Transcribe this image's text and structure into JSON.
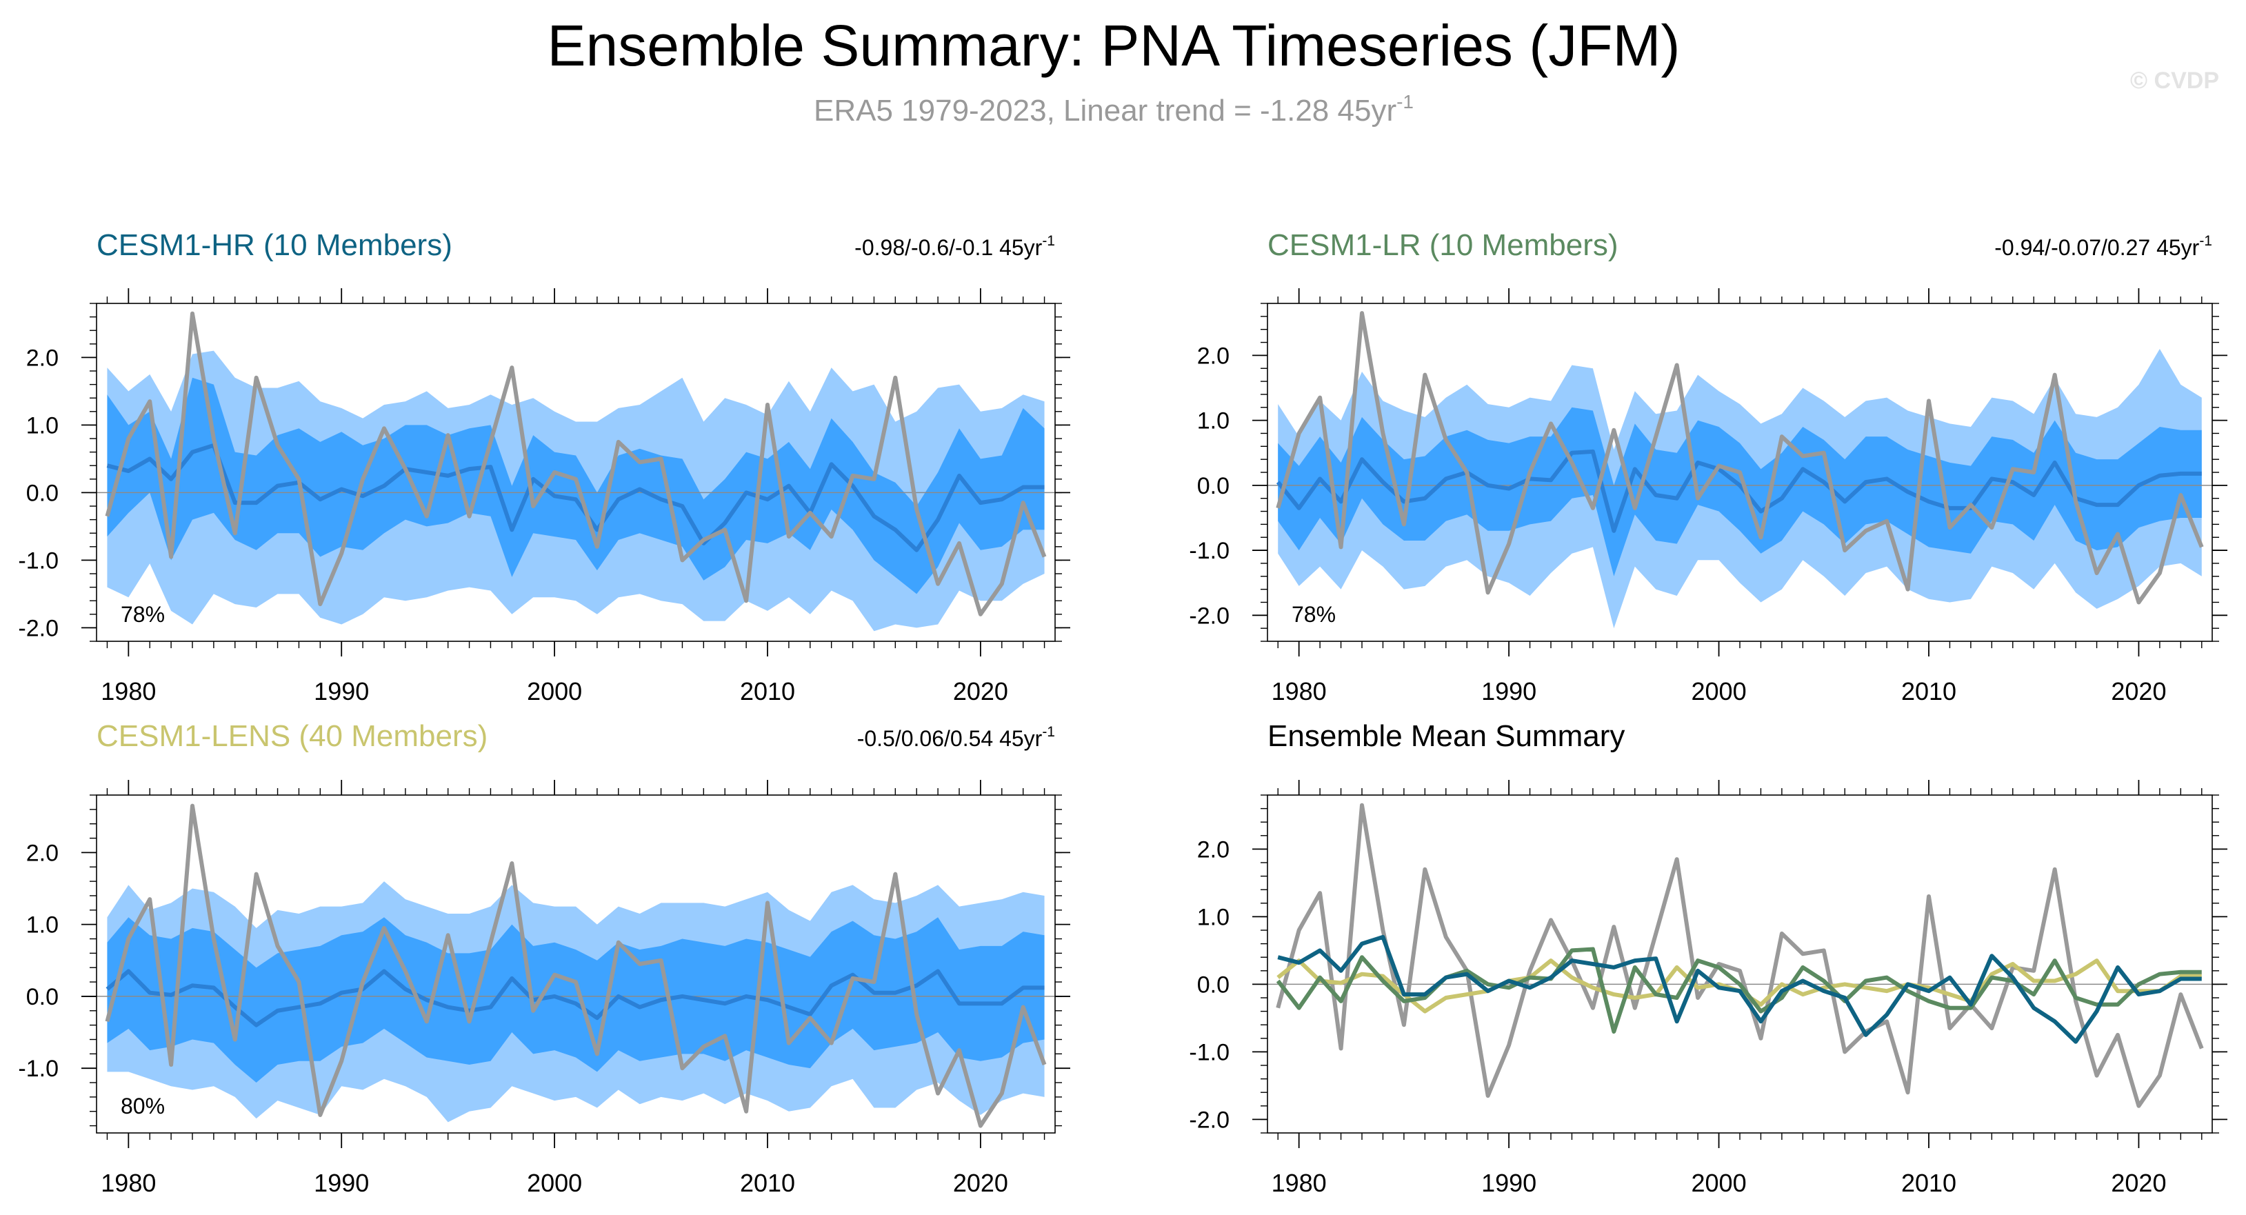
{
  "figure": {
    "title": "Ensemble Summary: PNA Timeseries (JFM)",
    "subtitle_main": "ERA5 1979-2023, Linear trend = -1.28 45yr",
    "subtitle_sup": "-1",
    "watermark": "© CVDP"
  },
  "colors": {
    "obs": "#999999",
    "cesm1_hr": "#0e6383",
    "cesm1_lr": "#5b8a60",
    "cesm1_lens": "#c9c56e",
    "spread_outer": "#99ccff",
    "spread_inner": "#3ea3ff",
    "ens_mean": "#2b80d6"
  },
  "chart_data": [
    {
      "type": "area",
      "title": "CESM1-HR (10 Members)",
      "title_color": "#0e6383",
      "trend_text": "-0.98/-0.6/-0.1 45yr",
      "trend_sup": "-1",
      "pct_label": "78%",
      "ylim": [
        -2.2,
        2.8
      ],
      "yticks": [
        "2.0",
        "1.0",
        "0.0",
        "-1.0",
        "-2.0"
      ],
      "ytick_values": [
        2,
        1,
        0,
        -1,
        -2
      ],
      "xticks": [
        "1980",
        "1990",
        "2000",
        "2010",
        "2020"
      ],
      "xtick_values": [
        1980,
        1990,
        2000,
        2010,
        2020
      ],
      "xlim": [
        1978.5,
        2023.5
      ],
      "x_start": 1979,
      "obs": [
        -0.35,
        0.8,
        1.35,
        -0.95,
        2.65,
        0.8,
        -0.6,
        1.7,
        0.7,
        0.2,
        -1.65,
        -0.9,
        0.2,
        0.95,
        0.35,
        -0.35,
        0.85,
        -0.35,
        0.75,
        1.85,
        -0.2,
        0.3,
        0.2,
        -0.8,
        0.75,
        0.45,
        0.5,
        -1.0,
        -0.7,
        -0.55,
        -1.6,
        1.3,
        -0.65,
        -0.3,
        -0.65,
        0.25,
        0.2,
        1.7,
        -0.25,
        -1.35,
        -0.75,
        -1.8,
        -1.35,
        -0.15,
        -0.95
      ],
      "mean": [
        0.4,
        0.32,
        0.5,
        0.2,
        0.6,
        0.7,
        -0.15,
        -0.15,
        0.1,
        0.15,
        -0.1,
        0.05,
        -0.05,
        0.1,
        0.35,
        0.3,
        0.25,
        0.35,
        0.38,
        -0.55,
        0.2,
        -0.05,
        -0.1,
        -0.55,
        -0.1,
        0.05,
        -0.1,
        -0.2,
        -0.75,
        -0.45,
        0.0,
        -0.1,
        0.1,
        -0.3,
        0.42,
        0.1,
        -0.35,
        -0.55,
        -0.85,
        -0.4,
        0.25,
        -0.15,
        -0.1,
        0.08,
        0.08
      ],
      "inner_lo": [
        -0.65,
        -0.3,
        0.0,
        -1.0,
        -0.4,
        -0.3,
        -0.7,
        -0.85,
        -0.6,
        -0.6,
        -0.95,
        -0.8,
        -0.85,
        -0.6,
        -0.4,
        -0.5,
        -0.45,
        -0.3,
        -0.35,
        -1.25,
        -0.6,
        -0.65,
        -0.7,
        -1.15,
        -0.7,
        -0.6,
        -0.7,
        -0.8,
        -1.3,
        -1.1,
        -0.7,
        -0.75,
        -0.6,
        -0.85,
        -0.25,
        -0.55,
        -1.0,
        -1.25,
        -1.5,
        -1.1,
        -0.45,
        -0.85,
        -0.8,
        -0.55,
        -0.55
      ],
      "inner_hi": [
        1.45,
        1.0,
        1.2,
        0.5,
        1.7,
        1.6,
        0.6,
        0.55,
        0.85,
        0.95,
        0.75,
        0.9,
        0.7,
        0.8,
        1.0,
        1.0,
        0.85,
        0.95,
        1.0,
        0.1,
        0.85,
        0.6,
        0.55,
        0.0,
        0.55,
        0.65,
        0.55,
        0.5,
        -0.1,
        0.2,
        0.6,
        0.5,
        0.75,
        0.35,
        1.1,
        0.75,
        0.3,
        0.15,
        -0.2,
        0.3,
        0.95,
        0.5,
        0.55,
        1.25,
        0.95
      ],
      "outer_lo": [
        -1.4,
        -1.55,
        -1.05,
        -1.75,
        -1.95,
        -1.5,
        -1.65,
        -1.7,
        -1.5,
        -1.5,
        -1.85,
        -1.95,
        -1.8,
        -1.55,
        -1.6,
        -1.55,
        -1.45,
        -1.4,
        -1.45,
        -1.8,
        -1.55,
        -1.55,
        -1.6,
        -1.8,
        -1.55,
        -1.5,
        -1.6,
        -1.65,
        -1.9,
        -1.9,
        -1.6,
        -1.75,
        -1.55,
        -1.8,
        -1.45,
        -1.6,
        -2.05,
        -1.95,
        -2.0,
        -1.95,
        -1.45,
        -1.6,
        -1.6,
        -1.35,
        -1.2
      ],
      "outer_hi": [
        1.85,
        1.5,
        1.75,
        1.2,
        2.05,
        2.1,
        1.7,
        1.55,
        1.55,
        1.65,
        1.35,
        1.25,
        1.1,
        1.3,
        1.35,
        1.5,
        1.25,
        1.3,
        1.45,
        1.3,
        1.4,
        1.2,
        1.05,
        1.05,
        1.25,
        1.3,
        1.5,
        1.7,
        1.05,
        1.4,
        1.3,
        1.15,
        1.65,
        1.2,
        1.85,
        1.5,
        1.6,
        1.05,
        1.2,
        1.55,
        1.6,
        1.2,
        1.25,
        1.45,
        1.35
      ]
    },
    {
      "type": "area",
      "title": "CESM1-LR (10 Members)",
      "title_color": "#5b8a60",
      "trend_text": "-0.94/-0.07/0.27 45yr",
      "trend_sup": "-1",
      "pct_label": "78%",
      "ylim": [
        -2.4,
        2.8
      ],
      "yticks": [
        "2.0",
        "1.0",
        "0.0",
        "-1.0",
        "-2.0"
      ],
      "ytick_values": [
        2,
        1,
        0,
        -1,
        -2
      ],
      "xticks": [
        "1980",
        "1990",
        "2000",
        "2010",
        "2020"
      ],
      "xtick_values": [
        1980,
        1990,
        2000,
        2010,
        2020
      ],
      "xlim": [
        1978.5,
        2023.5
      ],
      "x_start": 1979,
      "obs": [
        -0.35,
        0.8,
        1.35,
        -0.95,
        2.65,
        0.8,
        -0.6,
        1.7,
        0.7,
        0.2,
        -1.65,
        -0.9,
        0.2,
        0.95,
        0.35,
        -0.35,
        0.85,
        -0.35,
        0.75,
        1.85,
        -0.2,
        0.3,
        0.2,
        -0.8,
        0.75,
        0.45,
        0.5,
        -1.0,
        -0.7,
        -0.55,
        -1.6,
        1.3,
        -0.65,
        -0.3,
        -0.65,
        0.25,
        0.2,
        1.7,
        -0.25,
        -1.35,
        -0.75,
        -1.8,
        -1.35,
        -0.15,
        -0.95
      ],
      "mean": [
        0.05,
        -0.35,
        0.1,
        -0.25,
        0.4,
        0.05,
        -0.25,
        -0.2,
        0.1,
        0.2,
        0.0,
        -0.05,
        0.1,
        0.08,
        0.5,
        0.52,
        -0.7,
        0.25,
        -0.15,
        -0.2,
        0.35,
        0.25,
        0.0,
        -0.4,
        -0.2,
        0.25,
        0.05,
        -0.25,
        0.05,
        0.1,
        -0.1,
        -0.25,
        -0.35,
        -0.35,
        0.1,
        0.05,
        -0.15,
        0.35,
        -0.2,
        -0.3,
        -0.3,
        0.0,
        0.15,
        0.18,
        0.18
      ],
      "inner_lo": [
        -0.55,
        -1.0,
        -0.5,
        -0.9,
        -0.2,
        -0.6,
        -0.85,
        -0.85,
        -0.55,
        -0.45,
        -0.7,
        -0.7,
        -0.6,
        -0.55,
        -0.2,
        -0.15,
        -1.4,
        -0.45,
        -0.85,
        -0.9,
        -0.3,
        -0.4,
        -0.7,
        -1.05,
        -0.85,
        -0.4,
        -0.6,
        -0.9,
        -0.6,
        -0.55,
        -0.75,
        -0.95,
        -1.0,
        -1.05,
        -0.55,
        -0.6,
        -0.85,
        -0.3,
        -0.85,
        -1.0,
        -0.95,
        -0.65,
        -0.55,
        -0.5,
        -0.5
      ],
      "inner_hi": [
        0.65,
        0.3,
        0.75,
        0.35,
        1.05,
        0.7,
        0.4,
        0.45,
        0.75,
        0.85,
        0.7,
        0.65,
        0.75,
        0.75,
        1.2,
        1.15,
        0.0,
        0.95,
        0.55,
        0.5,
        1.0,
        0.9,
        0.65,
        0.25,
        0.5,
        0.9,
        0.7,
        0.4,
        0.75,
        0.75,
        0.55,
        0.45,
        0.35,
        0.3,
        0.75,
        0.7,
        0.5,
        1.0,
        0.5,
        0.4,
        0.4,
        0.65,
        0.9,
        0.85,
        0.85
      ],
      "outer_lo": [
        -1.05,
        -1.55,
        -1.25,
        -1.6,
        -1.0,
        -1.25,
        -1.6,
        -1.55,
        -1.25,
        -1.15,
        -1.4,
        -1.5,
        -1.7,
        -1.35,
        -1.05,
        -0.95,
        -2.2,
        -1.25,
        -1.6,
        -1.7,
        -1.15,
        -1.15,
        -1.5,
        -1.8,
        -1.6,
        -1.15,
        -1.4,
        -1.7,
        -1.35,
        -1.25,
        -1.6,
        -1.75,
        -1.8,
        -1.75,
        -1.25,
        -1.35,
        -1.6,
        -1.2,
        -1.65,
        -1.9,
        -1.75,
        -1.55,
        -1.25,
        -1.2,
        -1.4
      ],
      "outer_hi": [
        1.25,
        0.75,
        1.3,
        1.0,
        1.75,
        1.3,
        1.15,
        1.05,
        1.35,
        1.55,
        1.25,
        1.2,
        1.35,
        1.3,
        1.85,
        1.8,
        0.55,
        1.45,
        1.1,
        1.15,
        1.7,
        1.45,
        1.25,
        0.95,
        1.1,
        1.5,
        1.3,
        1.05,
        1.3,
        1.35,
        1.15,
        1.05,
        0.95,
        0.9,
        1.35,
        1.3,
        1.1,
        1.65,
        1.1,
        1.05,
        1.2,
        1.55,
        2.1,
        1.55,
        1.35
      ]
    },
    {
      "type": "area",
      "title": "CESM1-LENS (40 Members)",
      "title_color": "#c9c56e",
      "trend_text": "-0.5/0.06/0.54 45yr",
      "trend_sup": "-1",
      "pct_label": "80%",
      "ylim": [
        -1.9,
        2.8
      ],
      "yticks": [
        "2.0",
        "1.0",
        "0.0",
        "-1.0"
      ],
      "ytick_values": [
        2,
        1,
        0,
        -1
      ],
      "xticks": [
        "1980",
        "1990",
        "2000",
        "2010",
        "2020"
      ],
      "xtick_values": [
        1980,
        1990,
        2000,
        2010,
        2020
      ],
      "xlim": [
        1978.5,
        2023.5
      ],
      "x_start": 1979,
      "obs": [
        -0.35,
        0.8,
        1.35,
        -0.95,
        2.65,
        0.8,
        -0.6,
        1.7,
        0.7,
        0.2,
        -1.65,
        -0.9,
        0.2,
        0.95,
        0.35,
        -0.35,
        0.85,
        -0.35,
        0.75,
        1.85,
        -0.2,
        0.3,
        0.2,
        -0.8,
        0.75,
        0.45,
        0.5,
        -1.0,
        -0.7,
        -0.55,
        -1.6,
        1.3,
        -0.65,
        -0.3,
        -0.65,
        0.25,
        0.2,
        1.7,
        -0.25,
        -1.35,
        -0.75,
        -1.8,
        -1.35,
        -0.15,
        -0.95
      ],
      "mean": [
        0.1,
        0.35,
        0.05,
        0.02,
        0.15,
        0.12,
        -0.15,
        -0.4,
        -0.2,
        -0.15,
        -0.1,
        0.05,
        0.1,
        0.35,
        0.1,
        -0.05,
        -0.15,
        -0.2,
        -0.15,
        0.25,
        -0.05,
        0.0,
        -0.1,
        -0.3,
        0.0,
        -0.15,
        -0.05,
        0.0,
        -0.05,
        -0.1,
        0.0,
        -0.05,
        -0.15,
        -0.25,
        0.15,
        0.3,
        0.05,
        0.05,
        0.15,
        0.35,
        -0.1,
        -0.1,
        -0.1,
        0.12,
        0.12
      ],
      "inner_lo": [
        -0.65,
        -0.45,
        -0.75,
        -0.7,
        -0.6,
        -0.65,
        -0.95,
        -1.2,
        -0.95,
        -0.9,
        -0.9,
        -0.7,
        -0.65,
        -0.45,
        -0.65,
        -0.85,
        -0.9,
        -0.95,
        -0.9,
        -0.5,
        -0.8,
        -0.75,
        -0.85,
        -1.05,
        -0.75,
        -0.9,
        -0.85,
        -0.8,
        -0.8,
        -0.9,
        -0.75,
        -0.85,
        -0.95,
        -1.0,
        -0.65,
        -0.45,
        -0.75,
        -0.7,
        -0.65,
        -0.5,
        -0.85,
        -0.9,
        -0.85,
        -0.65,
        -0.6
      ],
      "inner_hi": [
        0.75,
        1.1,
        0.85,
        0.8,
        0.95,
        0.9,
        0.65,
        0.4,
        0.6,
        0.65,
        0.7,
        0.85,
        0.9,
        1.1,
        0.85,
        0.75,
        0.6,
        0.6,
        0.65,
        1.0,
        0.7,
        0.75,
        0.65,
        0.5,
        0.75,
        0.65,
        0.7,
        0.8,
        0.75,
        0.7,
        0.8,
        0.75,
        0.65,
        0.55,
        0.9,
        1.05,
        0.85,
        0.8,
        0.9,
        1.1,
        0.65,
        0.7,
        0.7,
        0.9,
        0.85
      ],
      "outer_lo": [
        -1.05,
        -1.05,
        -1.15,
        -1.25,
        -1.3,
        -1.25,
        -1.4,
        -1.7,
        -1.45,
        -1.55,
        -1.65,
        -1.25,
        -1.3,
        -1.15,
        -1.25,
        -1.4,
        -1.75,
        -1.6,
        -1.55,
        -1.25,
        -1.35,
        -1.45,
        -1.4,
        -1.55,
        -1.3,
        -1.5,
        -1.4,
        -1.45,
        -1.35,
        -1.5,
        -1.35,
        -1.45,
        -1.6,
        -1.55,
        -1.25,
        -1.15,
        -1.55,
        -1.55,
        -1.3,
        -1.2,
        -1.45,
        -1.65,
        -1.45,
        -1.35,
        -1.4
      ],
      "outer_hi": [
        1.1,
        1.55,
        1.2,
        1.3,
        1.5,
        1.45,
        1.25,
        0.95,
        1.2,
        1.15,
        1.25,
        1.25,
        1.3,
        1.6,
        1.35,
        1.25,
        1.15,
        1.15,
        1.25,
        1.55,
        1.3,
        1.25,
        1.25,
        1.0,
        1.25,
        1.15,
        1.3,
        1.3,
        1.3,
        1.25,
        1.35,
        1.45,
        1.2,
        1.05,
        1.45,
        1.55,
        1.35,
        1.3,
        1.4,
        1.55,
        1.25,
        1.3,
        1.35,
        1.45,
        1.4
      ]
    },
    {
      "type": "line",
      "title": "Ensemble Mean Summary",
      "title_color": "#000000",
      "ylim": [
        -2.2,
        2.8
      ],
      "yticks": [
        "2.0",
        "1.0",
        "0.0",
        "-1.0",
        "-2.0"
      ],
      "ytick_values": [
        2,
        1,
        0,
        -1,
        -2
      ],
      "xticks": [
        "1980",
        "1990",
        "2000",
        "2010",
        "2020"
      ],
      "xtick_values": [
        1980,
        1990,
        2000,
        2010,
        2020
      ],
      "xlim": [
        1978.5,
        2023.5
      ],
      "x_start": 1979,
      "series": [
        {
          "name": "ERA5",
          "color": "#999999",
          "values": [
            -0.35,
            0.8,
            1.35,
            -0.95,
            2.65,
            0.8,
            -0.6,
            1.7,
            0.7,
            0.2,
            -1.65,
            -0.9,
            0.2,
            0.95,
            0.35,
            -0.35,
            0.85,
            -0.35,
            0.75,
            1.85,
            -0.2,
            0.3,
            0.2,
            -0.8,
            0.75,
            0.45,
            0.5,
            -1.0,
            -0.7,
            -0.55,
            -1.6,
            1.3,
            -0.65,
            -0.3,
            -0.65,
            0.25,
            0.2,
            1.7,
            -0.25,
            -1.35,
            -0.75,
            -1.8,
            -1.35,
            -0.15,
            -0.95
          ]
        },
        {
          "name": "CESM1-LENS",
          "color": "#c9c56e",
          "values": [
            0.1,
            0.35,
            0.05,
            0.02,
            0.15,
            0.12,
            -0.15,
            -0.4,
            -0.2,
            -0.15,
            -0.1,
            0.05,
            0.1,
            0.35,
            0.1,
            -0.05,
            -0.15,
            -0.2,
            -0.15,
            0.25,
            -0.05,
            0.0,
            -0.1,
            -0.3,
            0.0,
            -0.15,
            -0.05,
            0.0,
            -0.05,
            -0.1,
            0.0,
            -0.05,
            -0.15,
            -0.25,
            0.15,
            0.3,
            0.05,
            0.05,
            0.15,
            0.35,
            -0.1,
            -0.1,
            -0.1,
            0.12,
            0.12
          ]
        },
        {
          "name": "CESM1-LR",
          "color": "#5b8a60",
          "values": [
            0.05,
            -0.35,
            0.1,
            -0.25,
            0.4,
            0.05,
            -0.25,
            -0.2,
            0.1,
            0.2,
            0.0,
            -0.05,
            0.1,
            0.08,
            0.5,
            0.52,
            -0.7,
            0.25,
            -0.15,
            -0.2,
            0.35,
            0.25,
            0.0,
            -0.4,
            -0.2,
            0.25,
            0.05,
            -0.25,
            0.05,
            0.1,
            -0.1,
            -0.25,
            -0.35,
            -0.35,
            0.1,
            0.05,
            -0.15,
            0.35,
            -0.2,
            -0.3,
            -0.3,
            0.0,
            0.15,
            0.18,
            0.18
          ]
        },
        {
          "name": "CESM1-HR",
          "color": "#0e6383",
          "values": [
            0.4,
            0.32,
            0.5,
            0.2,
            0.6,
            0.7,
            -0.15,
            -0.15,
            0.1,
            0.15,
            -0.1,
            0.05,
            -0.05,
            0.1,
            0.35,
            0.3,
            0.25,
            0.35,
            0.38,
            -0.55,
            0.2,
            -0.05,
            -0.1,
            -0.55,
            -0.1,
            0.05,
            -0.1,
            -0.2,
            -0.75,
            -0.45,
            0.0,
            -0.1,
            0.1,
            -0.3,
            0.42,
            0.1,
            -0.35,
            -0.55,
            -0.85,
            -0.4,
            0.25,
            -0.15,
            -0.1,
            0.08,
            0.08
          ]
        }
      ]
    }
  ]
}
